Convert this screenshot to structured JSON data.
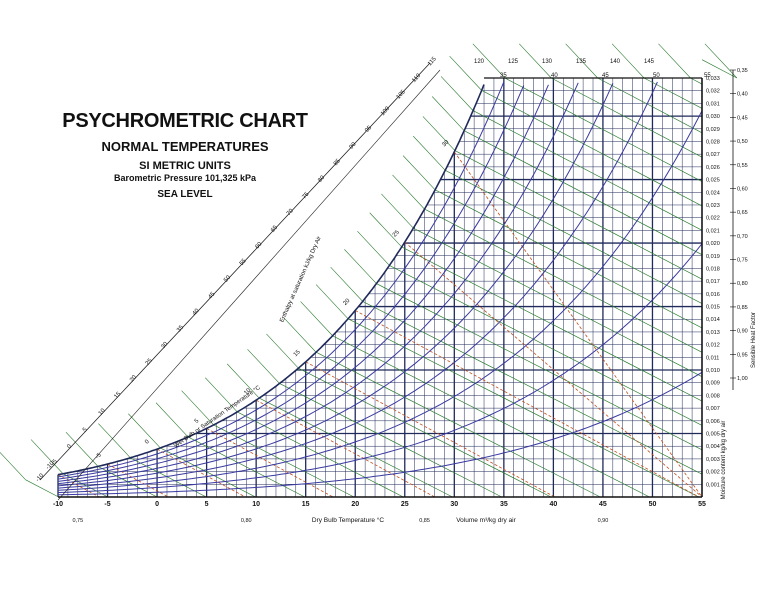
{
  "header": {
    "title": "PSYCHROMETRIC CHART",
    "subtitle": "NORMAL TEMPERATURES",
    "units": "SI METRIC UNITS",
    "pressure": "Barometric Pressure 101,325 kPa",
    "elevation": "SEA LEVEL"
  },
  "colors": {
    "grid": "#1f2a5a",
    "enthalpy": "#2e7d32",
    "rh": "#3a3aa0",
    "wetbulb": "#c0501e"
  },
  "chart_data": {
    "type": "psychrometric",
    "xlabel": "Dry Bulb Temperature °C",
    "volume_label": "Volume m³/kg dry air",
    "ylabel": "Moisture content kg/kg dry air",
    "enthalpy_label": "Enthalpy at saturation kJ/kg Dry Air",
    "wetbulb_label": "Wet Bulb or Saturation Temperature °C",
    "shf_label": "Sensible Heat Factor",
    "x": [
      -10,
      -5,
      0,
      5,
      10,
      15,
      20,
      25,
      30,
      35,
      40,
      45,
      50,
      55
    ],
    "xlim": [
      -10,
      55
    ],
    "ylim": [
      0,
      0.033
    ],
    "y_ticks": [
      "0,001",
      "0,002",
      "0,003",
      "0,004",
      "0,005",
      "0,006",
      "0,007",
      "0,008",
      "0,009",
      "0,010",
      "0,011",
      "0,012",
      "0,013",
      "0,014",
      "0,015",
      "0,016",
      "0,017",
      "0,018",
      "0,019",
      "0,020",
      "0,021",
      "0,022",
      "0,023",
      "0,024",
      "0,025",
      "0,026",
      "0,027",
      "0,028",
      "0,029",
      "0,030",
      "0,031",
      "0,032",
      "0,033"
    ],
    "volume_ticks": [
      {
        "label": "0,75",
        "x": -8
      },
      {
        "label": "0,80",
        "x": 9
      },
      {
        "label": "0,85",
        "x": 27
      },
      {
        "label": "0,90",
        "x": 45
      }
    ],
    "enthalpy_lines": [
      -10,
      -5,
      0,
      5,
      10,
      15,
      20,
      25,
      30,
      35,
      40,
      45,
      50,
      55,
      60,
      65,
      70,
      75,
      80,
      85,
      90,
      95,
      100,
      105,
      110,
      115,
      120,
      125,
      130,
      135,
      140,
      145
    ],
    "enthalpy_edge_labels": [
      "-10",
      "-5",
      "0",
      "5",
      "10",
      "15",
      "20",
      "25",
      "30",
      "35",
      "40",
      "45",
      "50",
      "55",
      "60",
      "65",
      "70",
      "75",
      "80",
      "85",
      "90",
      "95",
      "100",
      "105",
      "110",
      "115"
    ],
    "enthalpy_top_labels": [
      "120",
      "125",
      "130",
      "135",
      "140",
      "145"
    ],
    "wetbulb_lines": [
      -10,
      -5,
      0,
      5,
      10,
      15,
      20,
      25,
      30,
      35
    ],
    "wetbulb_labels": [
      "-10",
      "-5",
      "0",
      "5",
      "10",
      "15",
      "20",
      "25",
      "30",
      "35"
    ],
    "wetbulb_top_labels": [
      "35",
      "40",
      "45",
      "50",
      "55"
    ],
    "rh_curves": [
      10,
      20,
      30,
      40,
      50,
      60,
      70,
      80,
      90
    ],
    "shf_ticks": [
      "0,35",
      "0,40",
      "0,45",
      "0,50",
      "0,55",
      "0,60",
      "0,65",
      "0,70",
      "0,75",
      "0,80",
      "0,85",
      "0,90",
      "0,95",
      "1,00"
    ]
  }
}
